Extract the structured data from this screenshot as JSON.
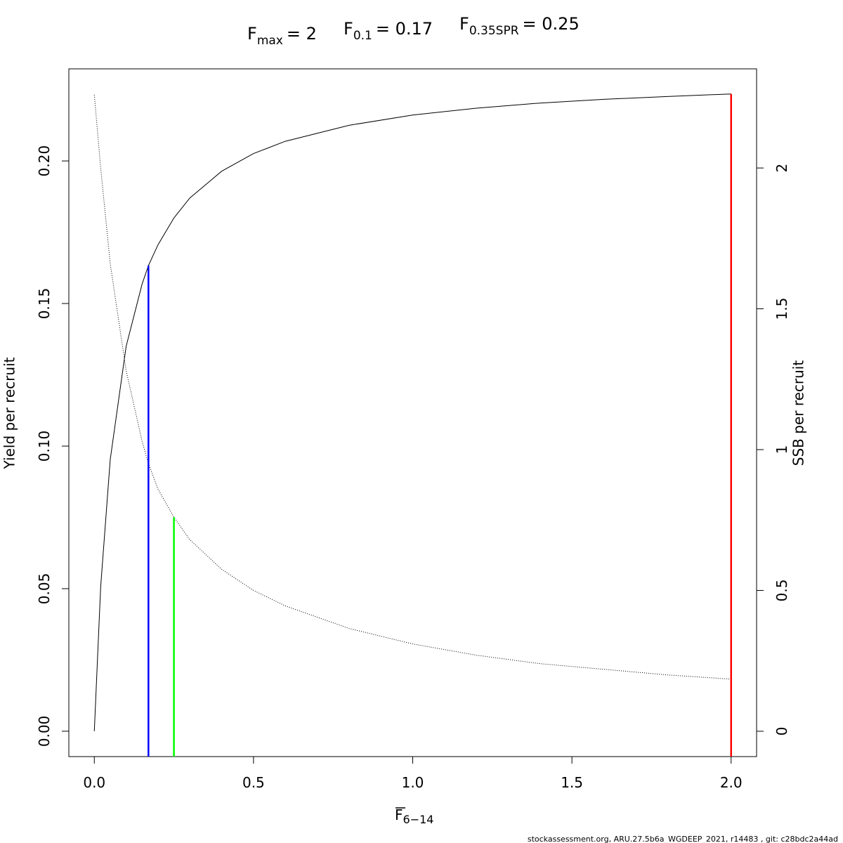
{
  "chart_data": {
    "type": "line",
    "title": [
      {
        "main": "F",
        "sub": "max",
        "rest": "= 2"
      },
      {
        "main": "F",
        "sub": "0.1",
        "rest": "= 0.17"
      },
      {
        "main": "F",
        "sub": "0.35SPR",
        "rest": "= 0.25"
      }
    ],
    "x_label": {
      "main": "F",
      "sub": "6−14"
    },
    "y_label": "Yield per recruit",
    "y2_label": "SSB per recruit",
    "footer": "stockassessment.org, ARU.27.5b6a_WGDEEP_2021, r14483 , git: c28bdc2a44ad",
    "x": [
      0,
      0.02,
      0.05,
      0.1,
      0.15,
      0.17,
      0.2,
      0.25,
      0.3,
      0.4,
      0.5,
      0.6,
      0.8,
      1.0,
      1.2,
      1.4,
      1.6,
      1.8,
      2.0
    ],
    "series": [
      {
        "color": "#000000",
        "dash": "solid",
        "axis": "y",
        "values": [
          0,
          0.0507,
          0.0953,
          0.135,
          0.1568,
          0.1633,
          0.1706,
          0.18,
          0.187,
          0.1964,
          0.2026,
          0.2069,
          0.2125,
          0.2161,
          0.2185,
          0.2203,
          0.2216,
          0.2226,
          0.2235
        ]
      },
      {
        "color": "#000000",
        "dash": "dotted",
        "axis": "y2",
        "values": [
          2.26,
          2.0,
          1.66,
          1.28,
          1.03,
          0.95,
          0.86,
          0.76,
          0.68,
          0.575,
          0.5,
          0.445,
          0.365,
          0.31,
          0.27,
          0.24,
          0.22,
          0.2,
          0.185
        ]
      }
    ],
    "reference_lines": [
      {
        "x": 0.17,
        "y": 0.1633,
        "axis": "y",
        "color": "#0000ff"
      },
      {
        "x": 0.25,
        "y": 0.76,
        "axis": "y2",
        "color": "#00ff00"
      },
      {
        "x": 2,
        "y": 0.2235,
        "axis": "y",
        "color": "#ff0000"
      }
    ],
    "xlim": [
      -0.08,
      2.08
    ],
    "xticks": [
      {
        "value": 0,
        "label": "0.0"
      },
      {
        "value": 0.5,
        "label": "0.5"
      },
      {
        "value": 1,
        "label": "1.0"
      },
      {
        "value": 1.5,
        "label": "1.5"
      },
      {
        "value": 2,
        "label": "2.0"
      }
    ],
    "ylim": [
      -0.0089,
      0.2323
    ],
    "yticks": [
      {
        "value": 0,
        "label": "0.00"
      },
      {
        "value": 0.05,
        "label": "0.05"
      },
      {
        "value": 0.1,
        "label": "0.10"
      },
      {
        "value": 0.15,
        "label": "0.15"
      },
      {
        "value": 0.2,
        "label": "0.20"
      }
    ],
    "y2lim": [
      -0.09,
      2.352
    ],
    "y2ticks": [
      0,
      0.5,
      1,
      1.5,
      2
    ]
  }
}
